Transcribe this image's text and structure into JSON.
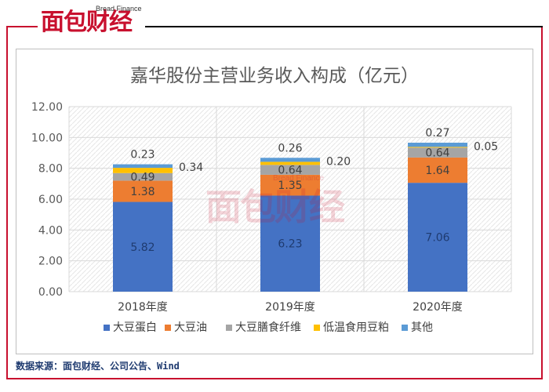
{
  "brand": {
    "name_cn": "面包财经",
    "name_en": "Bread Finance"
  },
  "source_note": "数据来源：面包财经、公司公告、Wind",
  "colors": {
    "brand_red": "#c8102e",
    "grid": "#d9d9d9",
    "hatch": "#e8e8e8"
  },
  "chart_data": {
    "type": "bar",
    "stacked": true,
    "title": "嘉华股份主营业务收入构成（亿元）",
    "xlabel": "",
    "ylabel": "",
    "categories": [
      "2018年度",
      "2019年度",
      "2020年度"
    ],
    "ylim": [
      0,
      12
    ],
    "yticks": [
      "0.00",
      "2.00",
      "4.00",
      "6.00",
      "8.00",
      "10.00",
      "12.00"
    ],
    "grid": true,
    "legend_position": "bottom",
    "series": [
      {
        "name": "大豆蛋白",
        "color": "#4472c4",
        "values": [
          5.82,
          6.23,
          7.06
        ],
        "labels": [
          "5.82",
          "6.23",
          "7.06"
        ]
      },
      {
        "name": "大豆油",
        "color": "#ed7d31",
        "values": [
          1.38,
          1.35,
          1.64
        ],
        "labels": [
          "1.38",
          "1.35",
          "1.64"
        ]
      },
      {
        "name": "大豆膳食纤维",
        "color": "#a5a5a5",
        "values": [
          0.49,
          0.64,
          0.64
        ],
        "labels": [
          "0.49",
          "0.64",
          "0.64"
        ]
      },
      {
        "name": "低温食用豆粕",
        "color": "#ffc000",
        "values": [
          0.34,
          0.2,
          0.05
        ],
        "labels": [
          "0.34",
          "0.20",
          "0.05"
        ]
      },
      {
        "name": "其他",
        "color": "#5b9bd5",
        "values": [
          0.23,
          0.26,
          0.27
        ],
        "labels": [
          "0.23",
          "0.26",
          "0.27"
        ]
      }
    ]
  }
}
